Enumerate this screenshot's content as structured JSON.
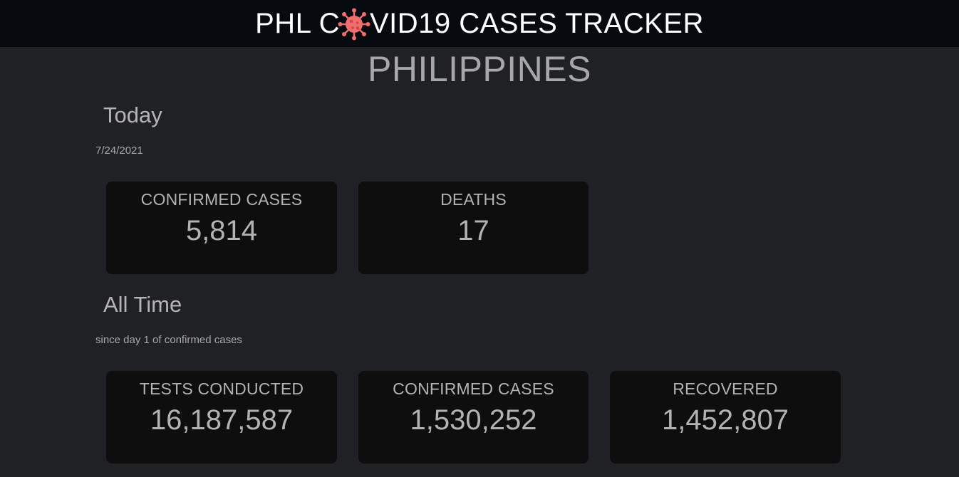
{
  "header": {
    "title_before": "PHL C",
    "title_after": "VID19 CASES TRACKER",
    "icon": "virus-icon",
    "icon_color": "#f26d6d"
  },
  "country": "PHILIPPINES",
  "today": {
    "title": "Today",
    "date": "7/24/2021",
    "cards": [
      {
        "label": "CONFIRMED CASES",
        "value": "5,814"
      },
      {
        "label": "DEATHS",
        "value": "17"
      }
    ]
  },
  "all_time": {
    "title": "All Time",
    "subtitle": "since day 1 of confirmed cases",
    "cards": [
      {
        "label": "TESTS CONDUCTED",
        "value": "16,187,587"
      },
      {
        "label": "CONFIRMED CASES",
        "value": "1,530,252"
      },
      {
        "label": "RECOVERED",
        "value": "1,452,807"
      }
    ]
  }
}
